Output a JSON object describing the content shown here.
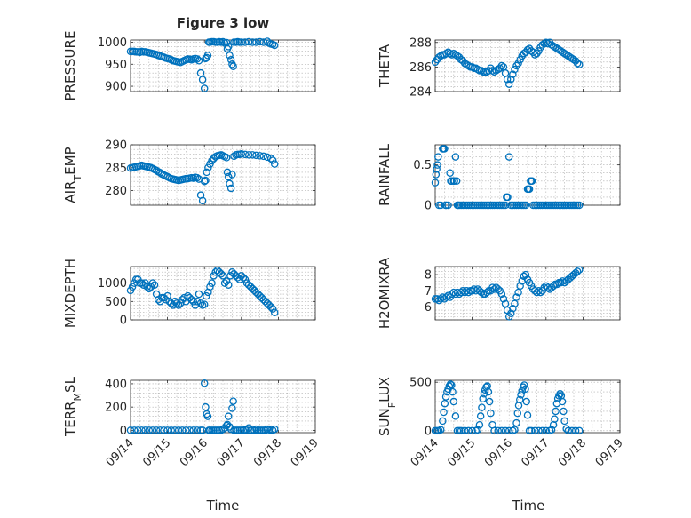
{
  "figure": {
    "title": "Figure 3 low",
    "xlabel": "Time",
    "marker_color": "#0072BD",
    "xticks": [
      "09/14",
      "09/15",
      "09/16",
      "09/17",
      "09/18",
      "09/19"
    ]
  },
  "chart_data": [
    {
      "type": "scatter",
      "id": "pressure",
      "ylabel": "PRESSURE",
      "ylim": [
        888,
        1005
      ],
      "yticks": [
        900,
        950,
        1000
      ],
      "xlim": [
        14,
        19
      ],
      "x": [
        14.0,
        14.05,
        14.1,
        14.15,
        14.2,
        14.25,
        14.3,
        14.35,
        14.4,
        14.45,
        14.5,
        14.55,
        14.6,
        14.65,
        14.7,
        14.75,
        14.8,
        14.85,
        14.9,
        14.95,
        15.0,
        15.05,
        15.1,
        15.15,
        15.2,
        15.25,
        15.3,
        15.35,
        15.4,
        15.45,
        15.5,
        15.55,
        15.6,
        15.65,
        15.7,
        15.75,
        15.8,
        15.85,
        15.9,
        15.95,
        16.0,
        16.03,
        16.06,
        16.09,
        16.12,
        16.15,
        16.2,
        16.25,
        16.3,
        16.35,
        16.4,
        16.45,
        16.5,
        16.55,
        16.6,
        16.62,
        16.65,
        16.68,
        16.72,
        16.75,
        16.78,
        16.8,
        16.85,
        16.9,
        16.95,
        17.0,
        17.1,
        17.2,
        17.3,
        17.4,
        17.5,
        17.6,
        17.7,
        17.75,
        17.8,
        17.85,
        17.9
      ],
      "y": [
        979,
        979,
        979,
        978,
        978,
        977,
        979,
        978,
        978,
        977,
        976,
        975,
        974,
        973,
        972,
        970,
        969,
        967,
        966,
        964,
        963,
        962,
        960,
        958,
        957,
        956,
        955,
        954,
        956,
        958,
        960,
        962,
        961,
        960,
        962,
        963,
        962,
        958,
        930,
        915,
        895,
        963,
        965,
        970,
        1000,
        1000,
        1001,
        1001,
        1000,
        1000,
        1001,
        1000,
        1001,
        998,
        999,
        985,
        990,
        970,
        960,
        950,
        945,
        1000,
        1000,
        1001,
        1000,
        1000,
        1000,
        1001,
        1000,
        1000,
        1001,
        1000,
        1002,
        998,
        996,
        995,
        993
      ]
    },
    {
      "type": "scatter",
      "id": "theta",
      "ylabel": "THETA",
      "ylim": [
        284,
        288.2
      ],
      "yticks": [
        284,
        286,
        288
      ],
      "xlim": [
        14,
        19
      ],
      "x": [
        14.0,
        14.05,
        14.1,
        14.15,
        14.2,
        14.25,
        14.3,
        14.35,
        14.4,
        14.45,
        14.5,
        14.55,
        14.6,
        14.65,
        14.7,
        14.75,
        14.8,
        14.85,
        14.9,
        14.95,
        15.0,
        15.05,
        15.1,
        15.15,
        15.2,
        15.25,
        15.3,
        15.35,
        15.4,
        15.45,
        15.5,
        15.55,
        15.6,
        15.65,
        15.7,
        15.75,
        15.8,
        15.85,
        15.9,
        15.95,
        16.0,
        16.05,
        16.1,
        16.15,
        16.2,
        16.25,
        16.3,
        16.35,
        16.4,
        16.45,
        16.5,
        16.55,
        16.6,
        16.65,
        16.7,
        16.75,
        16.8,
        16.85,
        16.9,
        16.95,
        17.0,
        17.05,
        17.1,
        17.15,
        17.2,
        17.25,
        17.3,
        17.35,
        17.4,
        17.45,
        17.5,
        17.55,
        17.6,
        17.65,
        17.7,
        17.75,
        17.8,
        17.85,
        17.9
      ],
      "y": [
        286.4,
        286.6,
        286.8,
        286.9,
        287.0,
        287.0,
        287.1,
        287.2,
        287.1,
        287.0,
        287.1,
        287.0,
        286.9,
        286.8,
        286.6,
        286.5,
        286.3,
        286.2,
        286.1,
        286.0,
        286.0,
        285.9,
        285.9,
        285.8,
        285.7,
        285.7,
        285.6,
        285.6,
        285.6,
        285.7,
        285.9,
        285.7,
        285.6,
        285.7,
        285.8,
        285.9,
        286.1,
        286.0,
        285.5,
        285.0,
        284.6,
        285.0,
        285.4,
        285.8,
        286.1,
        286.3,
        286.6,
        286.9,
        287.1,
        287.2,
        287.4,
        287.5,
        287.3,
        287.2,
        287.0,
        287.1,
        287.3,
        287.6,
        287.8,
        287.9,
        288.0,
        287.9,
        288.0,
        287.8,
        287.7,
        287.6,
        287.5,
        287.4,
        287.3,
        287.2,
        287.1,
        287.0,
        286.9,
        286.8,
        286.7,
        286.6,
        286.5,
        286.3,
        286.2
      ]
    },
    {
      "type": "scatter",
      "id": "air_temp",
      "ylabel": "AIR_TEMP",
      "ylim": [
        276.8,
        290
      ],
      "yticks": [
        280,
        285,
        290
      ],
      "xlim": [
        14,
        19
      ],
      "x": [
        14.0,
        14.05,
        14.1,
        14.15,
        14.2,
        14.25,
        14.3,
        14.35,
        14.4,
        14.45,
        14.5,
        14.55,
        14.6,
        14.65,
        14.7,
        14.75,
        14.8,
        14.85,
        14.9,
        14.95,
        15.0,
        15.05,
        15.1,
        15.15,
        15.2,
        15.25,
        15.3,
        15.35,
        15.4,
        15.45,
        15.5,
        15.55,
        15.6,
        15.65,
        15.7,
        15.75,
        15.8,
        15.85,
        15.9,
        15.95,
        16.0,
        16.03,
        16.06,
        16.1,
        16.15,
        16.2,
        16.25,
        16.3,
        16.35,
        16.4,
        16.45,
        16.5,
        16.55,
        16.6,
        16.62,
        16.65,
        16.68,
        16.72,
        16.75,
        16.8,
        16.85,
        16.9,
        16.95,
        17.0,
        17.1,
        17.2,
        17.3,
        17.4,
        17.5,
        17.6,
        17.7,
        17.8,
        17.85,
        17.9
      ],
      "y": [
        284.9,
        285.0,
        285.1,
        285.2,
        285.3,
        285.4,
        285.5,
        285.4,
        285.3,
        285.2,
        285.1,
        285.0,
        284.8,
        284.6,
        284.4,
        284.1,
        283.9,
        283.6,
        283.4,
        283.2,
        283.0,
        282.8,
        282.6,
        282.5,
        282.4,
        282.3,
        282.2,
        282.3,
        282.4,
        282.5,
        282.6,
        282.6,
        282.7,
        282.8,
        282.7,
        282.9,
        282.8,
        282.5,
        279.0,
        277.8,
        282.0,
        282.2,
        284.0,
        285.0,
        285.8,
        286.5,
        287.0,
        287.4,
        287.6,
        287.7,
        287.8,
        287.6,
        287.4,
        287.2,
        284.0,
        283.0,
        281.5,
        280.5,
        283.5,
        287.5,
        287.8,
        287.9,
        287.9,
        288.0,
        287.9,
        287.8,
        287.8,
        287.7,
        287.6,
        287.5,
        287.3,
        287.0,
        286.6,
        285.8
      ]
    },
    {
      "type": "scatter",
      "id": "rainfall",
      "ylabel": "RAINFALL",
      "ylim": [
        0,
        0.75
      ],
      "yticks": [
        0,
        0.5
      ],
      "xlim": [
        14,
        19
      ],
      "x": [
        14.0,
        14.02,
        14.04,
        14.06,
        14.08,
        14.1,
        14.15,
        14.2,
        14.22,
        14.25,
        14.28,
        14.3,
        14.35,
        14.4,
        14.42,
        14.45,
        14.5,
        14.52,
        14.55,
        14.58,
        14.6,
        14.62,
        14.65,
        14.7,
        14.75,
        14.8,
        14.85,
        14.9,
        14.95,
        15.0,
        15.05,
        15.1,
        15.15,
        15.2,
        15.25,
        15.3,
        15.35,
        15.4,
        15.45,
        15.5,
        15.55,
        15.6,
        15.65,
        15.7,
        15.75,
        15.8,
        15.85,
        15.9,
        15.93,
        15.96,
        16.0,
        16.05,
        16.1,
        16.15,
        16.2,
        16.25,
        16.3,
        16.35,
        16.4,
        16.45,
        16.5,
        16.52,
        16.55,
        16.58,
        16.6,
        16.62,
        16.65,
        16.7,
        16.75,
        16.8,
        16.85,
        16.9,
        16.95,
        17.0,
        17.05,
        17.1,
        17.15,
        17.2,
        17.25,
        17.3,
        17.35,
        17.4,
        17.45,
        17.5,
        17.55,
        17.6,
        17.65,
        17.7,
        17.75,
        17.8,
        17.85,
        17.9
      ],
      "y": [
        0.28,
        0.38,
        0.45,
        0.5,
        0.6,
        0,
        0,
        0.7,
        0.7,
        0.7,
        0,
        0,
        0,
        0.4,
        0.3,
        0.3,
        0.3,
        0.3,
        0.6,
        0.3,
        0,
        0,
        0,
        0,
        0,
        0,
        0,
        0,
        0,
        0,
        0,
        0,
        0,
        0,
        0,
        0,
        0,
        0,
        0,
        0,
        0,
        0,
        0,
        0,
        0,
        0,
        0,
        0,
        0.1,
        0.1,
        0.6,
        0,
        0,
        0,
        0,
        0,
        0,
        0,
        0,
        0,
        0.2,
        0.2,
        0.2,
        0.3,
        0.3,
        0.3,
        0,
        0,
        0,
        0,
        0,
        0,
        0,
        0,
        0,
        0,
        0,
        0,
        0,
        0,
        0,
        0,
        0,
        0,
        0,
        0,
        0,
        0,
        0,
        0,
        0,
        0
      ]
    },
    {
      "type": "scatter",
      "id": "mixdepth",
      "ylabel": "MIXDEPTH",
      "ylim": [
        0,
        1450
      ],
      "yticks": [
        0,
        500,
        1000
      ],
      "xlim": [
        14,
        19
      ],
      "x": [
        14.0,
        14.05,
        14.1,
        14.15,
        14.2,
        14.25,
        14.3,
        14.35,
        14.4,
        14.45,
        14.5,
        14.55,
        14.6,
        14.65,
        14.7,
        14.75,
        14.8,
        14.85,
        14.9,
        14.95,
        15.0,
        15.05,
        15.1,
        15.15,
        15.2,
        15.25,
        15.3,
        15.35,
        15.4,
        15.45,
        15.5,
        15.55,
        15.6,
        15.65,
        15.7,
        15.75,
        15.8,
        15.85,
        15.9,
        15.95,
        16.0,
        16.05,
        16.1,
        16.15,
        16.2,
        16.25,
        16.3,
        16.35,
        16.4,
        16.45,
        16.5,
        16.55,
        16.6,
        16.65,
        16.7,
        16.75,
        16.8,
        16.85,
        16.9,
        16.95,
        17.0,
        17.05,
        17.1,
        17.15,
        17.2,
        17.25,
        17.3,
        17.35,
        17.4,
        17.45,
        17.5,
        17.55,
        17.6,
        17.65,
        17.7,
        17.75,
        17.8,
        17.85,
        17.9
      ],
      "y": [
        800,
        900,
        1000,
        1100,
        1100,
        1000,
        1000,
        950,
        1000,
        900,
        850,
        900,
        1000,
        950,
        700,
        550,
        500,
        600,
        600,
        550,
        650,
        500,
        450,
        400,
        500,
        450,
        400,
        450,
        550,
        600,
        500,
        650,
        600,
        550,
        500,
        400,
        500,
        700,
        450,
        400,
        420,
        650,
        750,
        900,
        1000,
        1200,
        1300,
        1350,
        1300,
        1250,
        1200,
        1000,
        1050,
        950,
        1200,
        1300,
        1250,
        1200,
        1150,
        1100,
        1200,
        1150,
        1100,
        1000,
        950,
        900,
        850,
        800,
        750,
        700,
        650,
        600,
        550,
        500,
        450,
        400,
        350,
        300,
        200
      ]
    },
    {
      "type": "scatter",
      "id": "h2omixra",
      "ylabel": "H2OMIXRA",
      "ylim": [
        5.2,
        8.5
      ],
      "yticks": [
        6,
        7,
        8
      ],
      "xlim": [
        14,
        19
      ],
      "x": [
        14.0,
        14.05,
        14.1,
        14.15,
        14.2,
        14.25,
        14.3,
        14.35,
        14.4,
        14.45,
        14.5,
        14.55,
        14.6,
        14.65,
        14.7,
        14.75,
        14.8,
        14.85,
        14.9,
        14.95,
        15.0,
        15.05,
        15.1,
        15.15,
        15.2,
        15.25,
        15.3,
        15.35,
        15.4,
        15.45,
        15.5,
        15.55,
        15.6,
        15.65,
        15.7,
        15.75,
        15.8,
        15.85,
        15.9,
        15.95,
        16.0,
        16.05,
        16.1,
        16.15,
        16.2,
        16.25,
        16.3,
        16.35,
        16.4,
        16.45,
        16.5,
        16.55,
        16.6,
        16.65,
        16.7,
        16.75,
        16.8,
        16.85,
        16.9,
        16.95,
        17.0,
        17.05,
        17.1,
        17.15,
        17.2,
        17.25,
        17.3,
        17.35,
        17.4,
        17.45,
        17.5,
        17.55,
        17.6,
        17.65,
        17.7,
        17.75,
        17.8,
        17.85,
        17.9
      ],
      "y": [
        6.5,
        6.5,
        6.4,
        6.5,
        6.6,
        6.5,
        6.6,
        6.7,
        6.6,
        6.8,
        6.9,
        6.8,
        6.9,
        6.8,
        6.9,
        7.0,
        6.9,
        7.0,
        6.9,
        7.0,
        7.0,
        7.1,
        7.0,
        7.1,
        7.0,
        6.9,
        6.8,
        6.8,
        6.9,
        7.0,
        7.0,
        7.2,
        7.1,
        7.2,
        7.1,
        7.0,
        6.8,
        6.5,
        6.2,
        5.8,
        5.4,
        5.6,
        5.9,
        6.2,
        6.6,
        6.9,
        7.3,
        7.6,
        7.9,
        8.0,
        7.7,
        7.5,
        7.3,
        7.1,
        7.0,
        6.9,
        7.0,
        6.9,
        7.0,
        7.2,
        7.3,
        7.2,
        7.1,
        7.2,
        7.3,
        7.4,
        7.4,
        7.5,
        7.5,
        7.6,
        7.5,
        7.6,
        7.7,
        7.8,
        7.9,
        8.0,
        8.1,
        8.2,
        8.3
      ]
    },
    {
      "type": "scatter",
      "id": "terr_msl",
      "ylabel": "TERR_MSL",
      "ylim": [
        -20,
        430
      ],
      "yticks": [
        0,
        200,
        400
      ],
      "xlim": [
        14,
        19
      ],
      "x": [
        14.0,
        14.1,
        14.2,
        14.3,
        14.4,
        14.5,
        14.6,
        14.7,
        14.8,
        14.9,
        15.0,
        15.1,
        15.2,
        15.3,
        15.4,
        15.5,
        15.6,
        15.7,
        15.8,
        15.9,
        15.95,
        16.0,
        16.03,
        16.06,
        16.09,
        16.12,
        16.15,
        16.2,
        16.25,
        16.3,
        16.35,
        16.4,
        16.45,
        16.5,
        16.55,
        16.6,
        16.62,
        16.65,
        16.68,
        16.72,
        16.75,
        16.78,
        16.8,
        16.85,
        16.9,
        16.95,
        17.0,
        17.05,
        17.1,
        17.15,
        17.2,
        17.25,
        17.3,
        17.35,
        17.4,
        17.45,
        17.5,
        17.55,
        17.6,
        17.65,
        17.7,
        17.75,
        17.8,
        17.85,
        17.9
      ],
      "y": [
        0,
        0,
        0,
        0,
        0,
        0,
        0,
        0,
        0,
        0,
        0,
        0,
        0,
        0,
        0,
        0,
        0,
        0,
        0,
        0,
        0,
        405,
        200,
        140,
        120,
        0,
        0,
        0,
        0,
        0,
        0,
        0,
        0,
        10,
        20,
        40,
        50,
        120,
        30,
        10,
        190,
        250,
        0,
        0,
        0,
        0,
        0,
        0,
        5,
        0,
        20,
        0,
        0,
        0,
        10,
        0,
        0,
        0,
        0,
        0,
        10,
        5,
        0,
        0,
        10
      ]
    },
    {
      "type": "scatter",
      "id": "sun_flux",
      "ylabel": "SUN_FLUX",
      "ylim": [
        -20,
        520
      ],
      "yticks": [
        0,
        500
      ],
      "xlim": [
        14,
        19
      ],
      "x": [
        14.0,
        14.05,
        14.1,
        14.15,
        14.2,
        14.23,
        14.26,
        14.29,
        14.32,
        14.35,
        14.38,
        14.41,
        14.44,
        14.47,
        14.5,
        14.55,
        14.6,
        14.65,
        14.7,
        14.8,
        14.9,
        15.0,
        15.1,
        15.15,
        15.2,
        15.23,
        15.26,
        15.29,
        15.32,
        15.35,
        15.38,
        15.41,
        15.44,
        15.47,
        15.5,
        15.55,
        15.6,
        15.7,
        15.8,
        15.9,
        16.0,
        16.1,
        16.15,
        16.2,
        16.23,
        16.26,
        16.29,
        16.32,
        16.35,
        16.38,
        16.41,
        16.44,
        16.47,
        16.5,
        16.55,
        16.6,
        16.7,
        16.8,
        16.9,
        17.0,
        17.1,
        17.15,
        17.2,
        17.23,
        17.26,
        17.29,
        17.32,
        17.35,
        17.38,
        17.41,
        17.44,
        17.47,
        17.5,
        17.55,
        17.6,
        17.7,
        17.8,
        17.9
      ],
      "y": [
        0,
        0,
        0,
        10,
        100,
        190,
        280,
        350,
        400,
        430,
        460,
        480,
        470,
        400,
        300,
        150,
        0,
        0,
        0,
        0,
        0,
        0,
        0,
        10,
        60,
        150,
        240,
        330,
        380,
        420,
        450,
        460,
        400,
        300,
        180,
        60,
        0,
        0,
        0,
        0,
        0,
        0,
        10,
        80,
        180,
        260,
        320,
        370,
        410,
        450,
        470,
        430,
        300,
        160,
        0,
        0,
        0,
        0,
        0,
        0,
        0,
        10,
        60,
        120,
        200,
        280,
        330,
        360,
        380,
        360,
        300,
        200,
        100,
        20,
        0,
        0,
        0,
        0
      ]
    }
  ]
}
